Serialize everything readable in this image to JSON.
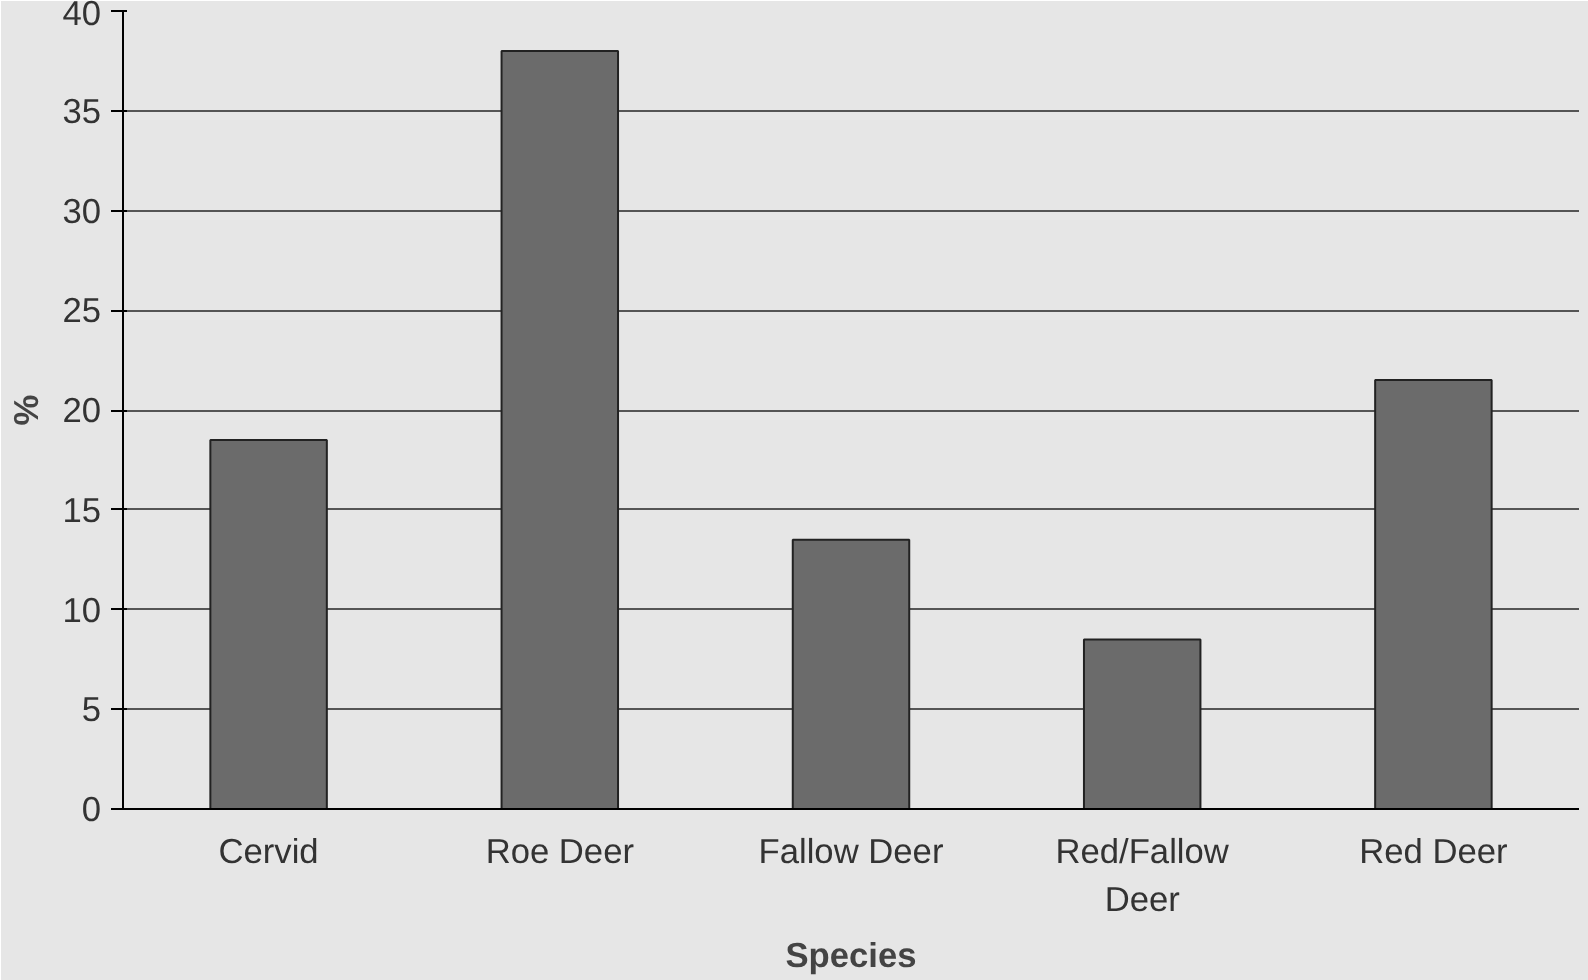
{
  "chart_data": {
    "type": "bar",
    "xlabel": "Species",
    "ylabel": "%",
    "categories": [
      "Cervid",
      "Roe Deer",
      "Fallow Deer",
      "Red/Fallow\nDeer",
      "Red Deer"
    ],
    "values": [
      18.5,
      38,
      13.5,
      8.5,
      21.5
    ],
    "color": "#6b6b6b",
    "ylim": [
      0,
      40
    ],
    "yticks": [
      0,
      5,
      10,
      15,
      20,
      25,
      30,
      35,
      40
    ],
    "grid": "y"
  }
}
